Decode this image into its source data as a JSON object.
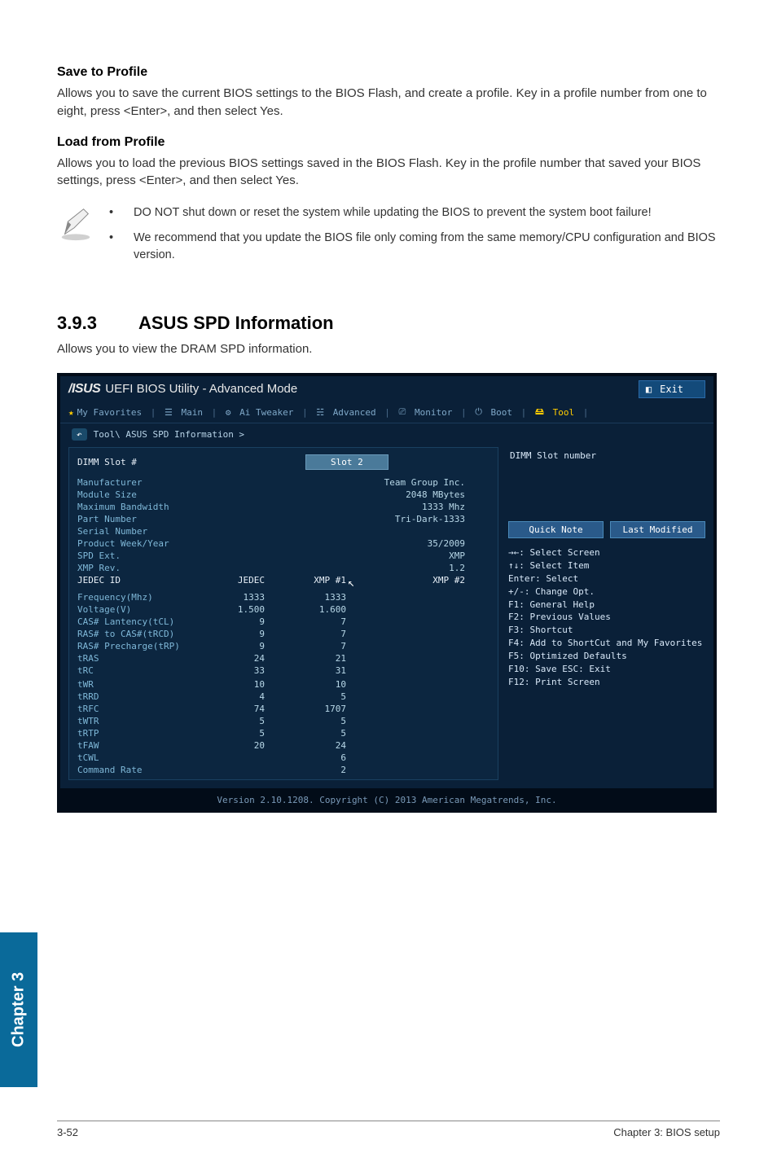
{
  "doc": {
    "save_heading": "Save to Profile",
    "save_body": "Allows you to save the current BIOS settings to the BIOS Flash, and create a profile. Key in a profile number from one to eight, press <Enter>, and then select Yes.",
    "load_heading": "Load from Profile",
    "load_body": "Allows you to load the previous BIOS settings saved in the BIOS Flash. Key in the profile number that saved your BIOS settings, press <Enter>, and then select Yes.",
    "note1": "DO NOT shut down or reset the system while updating the BIOS to prevent the system boot failure!",
    "note2": "We recommend that you update the BIOS file only coming from the same memory/CPU configuration and BIOS version.",
    "section_num": "3.9.3",
    "section_title": "ASUS SPD Information",
    "section_body": "Allows you to view the DRAM SPD information.",
    "chapter_tab": "Chapter 3",
    "footer_left": "3-52",
    "footer_right": "Chapter 3: BIOS setup"
  },
  "bios": {
    "title": "UEFI BIOS Utility - Advanced Mode",
    "exit_label": "Exit",
    "tabs": {
      "fav": "My Favorites",
      "main": "Main",
      "tweaker": "Ai Tweaker",
      "advanced": "Advanced",
      "monitor": "Monitor",
      "boot": "Boot",
      "tool": "Tool"
    },
    "breadcrumb": "Tool\\ ASUS SPD Information >",
    "slot_label": "DIMM Slot #",
    "slot_value": "Slot 2",
    "help_title": "DIMM Slot number",
    "info": [
      {
        "k": "Manufacturer",
        "v": "Team Group Inc."
      },
      {
        "k": "Module Size",
        "v": "2048 MBytes"
      },
      {
        "k": "Maximum Bandwidth",
        "v": "1333 Mhz"
      },
      {
        "k": "Part Number",
        "v": "Tri-Dark-1333"
      },
      {
        "k": "Serial Number",
        "v": ""
      },
      {
        "k": "Product Week/Year",
        "v": "35/2009"
      },
      {
        "k": "SPD Ext.",
        "v": "XMP"
      },
      {
        "k": "XMP Rev.",
        "v": "1.2"
      }
    ],
    "cols": {
      "c0": "JEDEC ID",
      "c1": "JEDEC",
      "c2": "XMP #1",
      "c3": "XMP #2"
    },
    "timing": [
      {
        "k": "Frequency(Mhz)",
        "a": "1333",
        "b": "1333"
      },
      {
        "k": "Voltage(V)",
        "a": "1.500",
        "b": "1.600"
      },
      {
        "k": "CAS# Lantency(tCL)",
        "a": "9",
        "b": "7"
      },
      {
        "k": "RAS# to CAS#(tRCD)",
        "a": "9",
        "b": "7"
      },
      {
        "k": "RAS# Precharge(tRP)",
        "a": "9",
        "b": "7"
      },
      {
        "k": "tRAS",
        "a": "24",
        "b": "21"
      },
      {
        "k": "tRC",
        "a": "33",
        "b": "31"
      },
      {
        "k": "",
        "a": "",
        "b": ""
      },
      {
        "k": "tWR",
        "a": "10",
        "b": "10"
      },
      {
        "k": "tRRD",
        "a": "4",
        "b": "5"
      },
      {
        "k": "tRFC",
        "a": "74",
        "b": "1707"
      },
      {
        "k": "tWTR",
        "a": "5",
        "b": "5"
      },
      {
        "k": "tRTP",
        "a": "5",
        "b": "5"
      },
      {
        "k": "tFAW",
        "a": "20",
        "b": "24"
      },
      {
        "k": "tCWL",
        "a": "",
        "b": "6"
      },
      {
        "k": "Command Rate",
        "a": "",
        "b": "2"
      }
    ],
    "quicknote": "Quick Note",
    "lastmod": "Last Modified",
    "help": [
      "→←: Select Screen",
      "↑↓: Select Item",
      "Enter: Select",
      "+/-: Change Opt.",
      "F1: General Help",
      "F2: Previous Values",
      "F3: Shortcut",
      "F4: Add to ShortCut and My Favorites",
      "F5: Optimized Defaults",
      "F10: Save  ESC: Exit",
      "F12: Print Screen"
    ],
    "footer": "Version 2.10.1208. Copyright (C) 2013 American Megatrends, Inc."
  },
  "colors": {
    "bios_bg": "#0a2038",
    "bios_border": "#020c18",
    "tab_accent": "#0a6a9a"
  }
}
